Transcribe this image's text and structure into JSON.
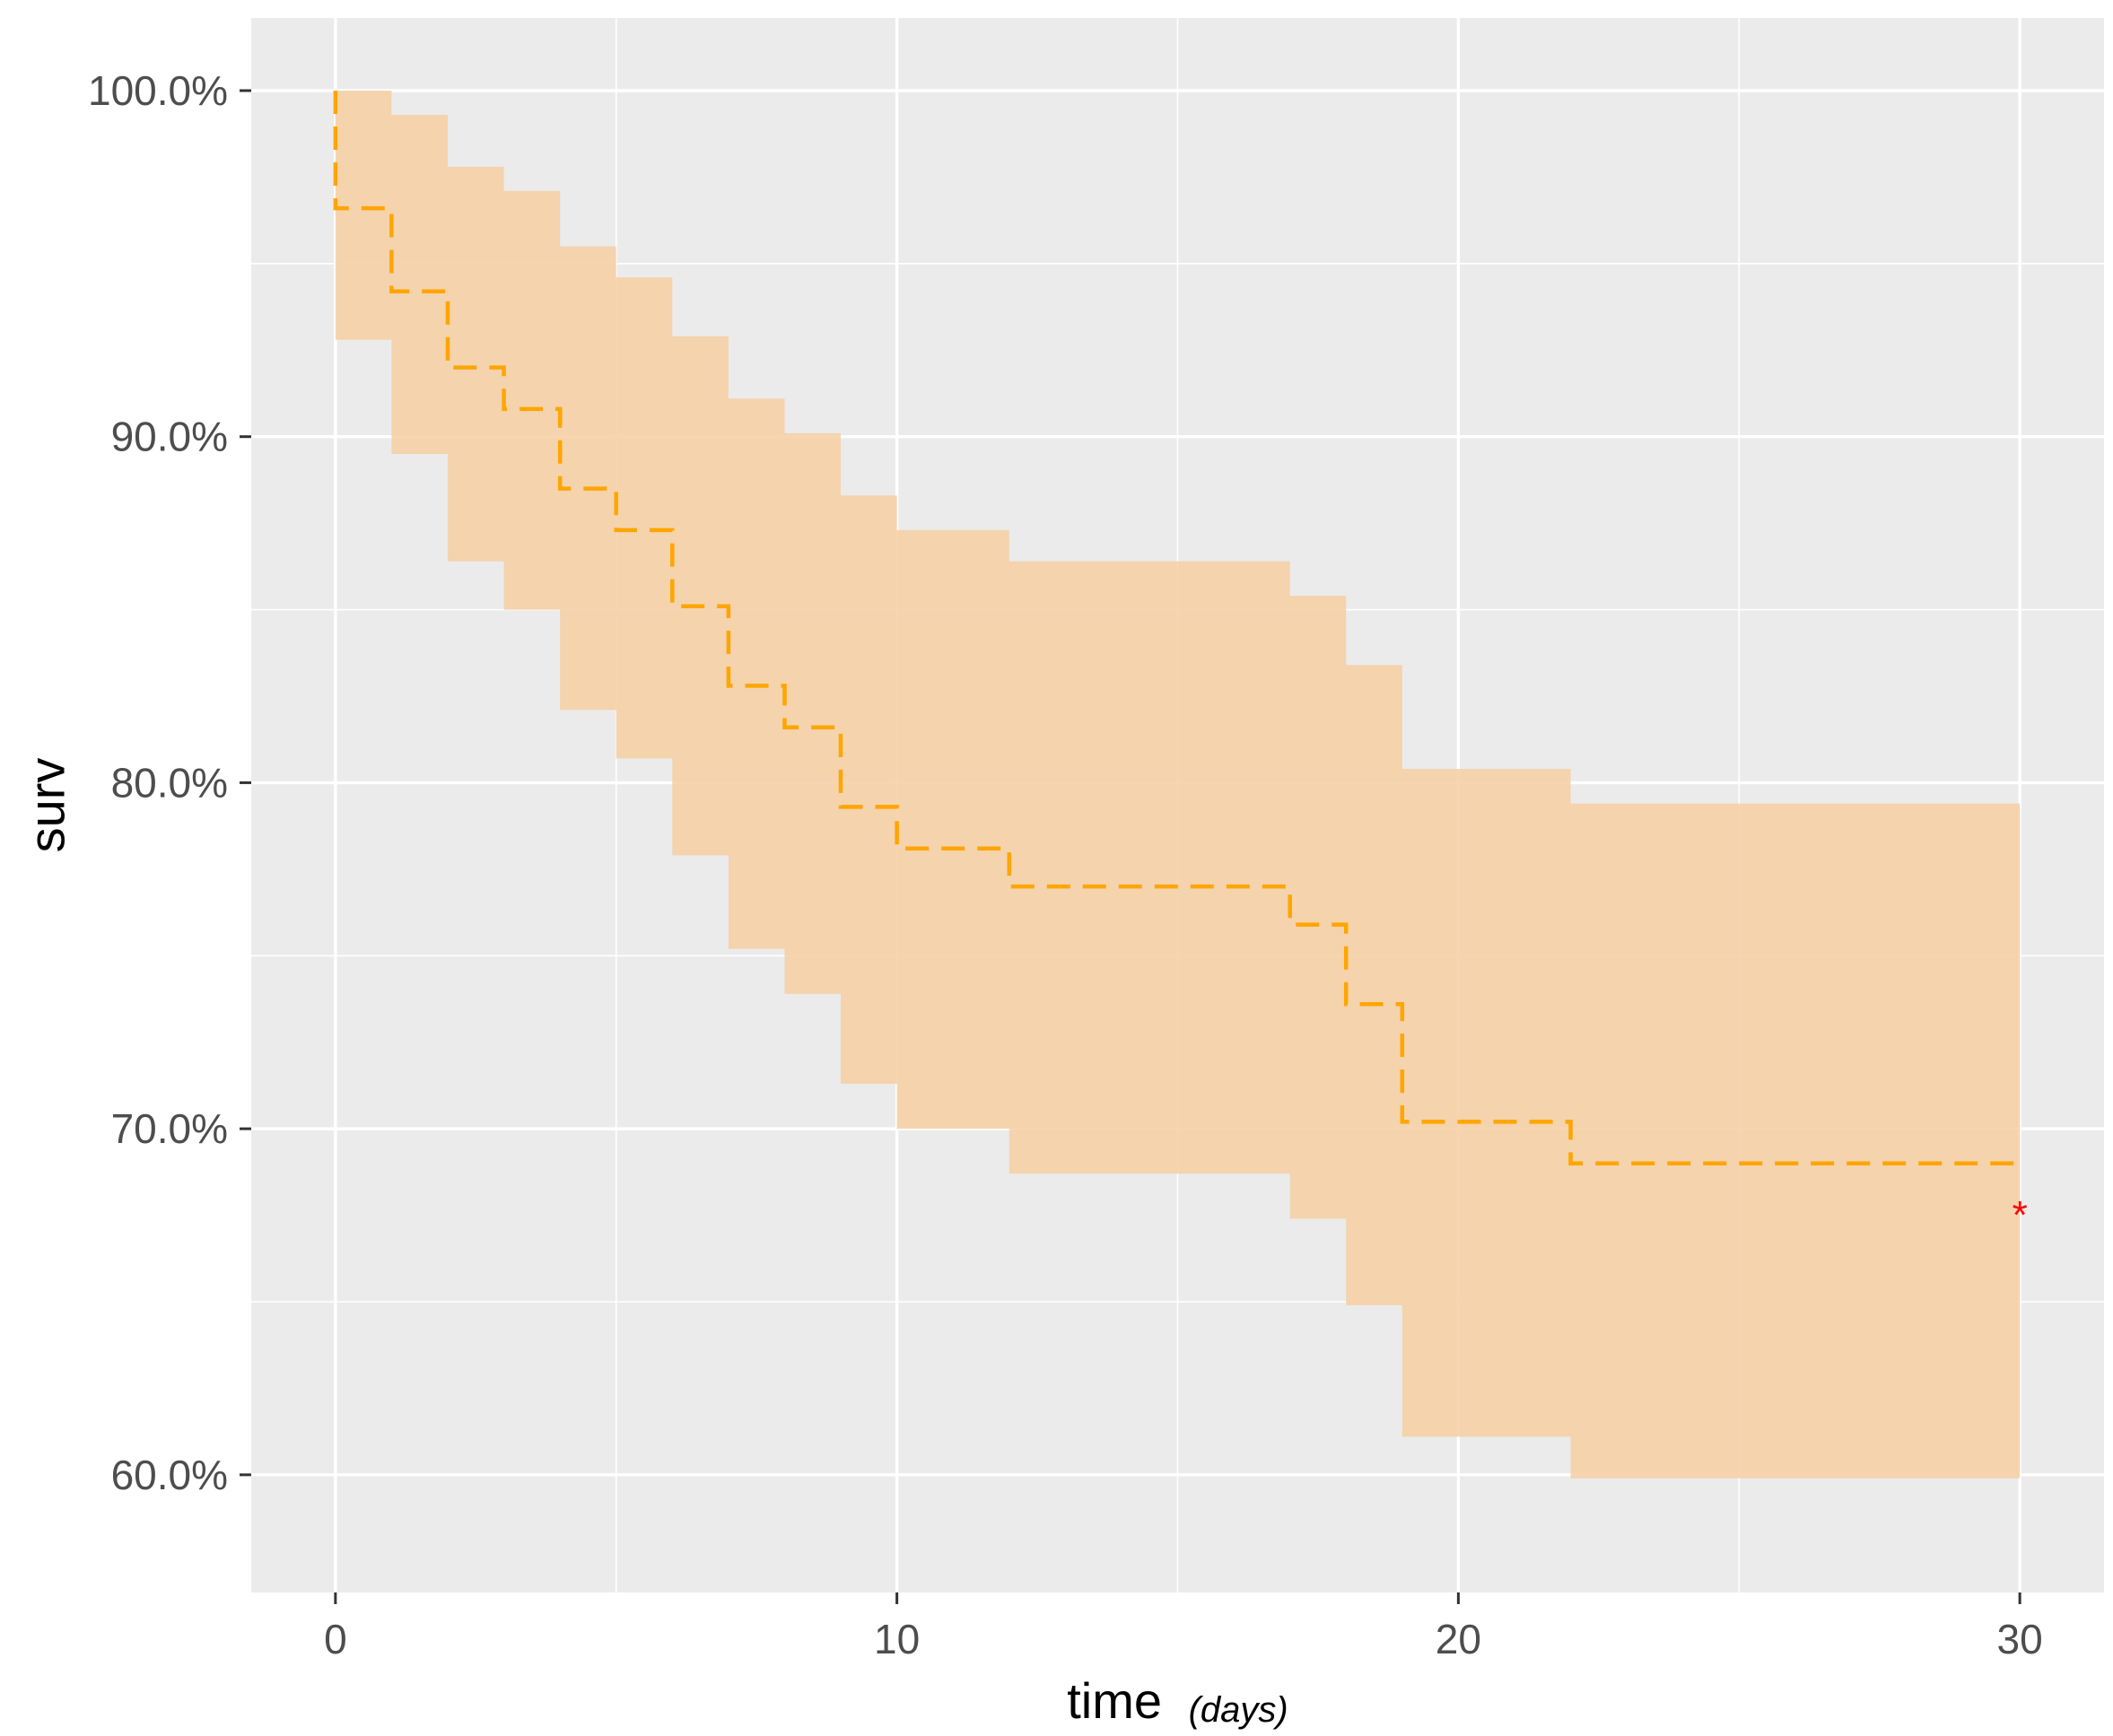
{
  "chart_data": {
    "type": "line",
    "step": true,
    "xlabel": "time",
    "xlabel_unit": "(days)",
    "ylabel": "surv",
    "xlim": [
      -1.5,
      31.5
    ],
    "ylim": [
      56.6,
      102.1
    ],
    "x_ticks": [
      0,
      10,
      20,
      30
    ],
    "x_tick_labels": [
      "0",
      "10",
      "20",
      "30"
    ],
    "y_ticks": [
      60,
      70,
      80,
      90,
      100
    ],
    "y_tick_labels": [
      "60.0%",
      "70.0%",
      "80.0%",
      "90.0%",
      "100.0%"
    ],
    "grid": true,
    "legend": "none",
    "series": [
      {
        "line_style": "dashed",
        "color": "#FFA500",
        "ci_color": "#F5D0A6",
        "steps": [
          {
            "x": 0,
            "surv": 96.6,
            "lower": 92.8,
            "upper": 100.0
          },
          {
            "x": 1,
            "surv": 94.2,
            "lower": 89.5,
            "upper": 99.3
          },
          {
            "x": 2,
            "surv": 92.0,
            "lower": 86.4,
            "upper": 97.8
          },
          {
            "x": 3,
            "surv": 90.8,
            "lower": 85.0,
            "upper": 97.1
          },
          {
            "x": 4,
            "surv": 88.5,
            "lower": 82.1,
            "upper": 95.5
          },
          {
            "x": 5,
            "surv": 87.3,
            "lower": 80.7,
            "upper": 94.6
          },
          {
            "x": 6,
            "surv": 85.1,
            "lower": 77.9,
            "upper": 92.9
          },
          {
            "x": 7,
            "surv": 82.8,
            "lower": 75.2,
            "upper": 91.1
          },
          {
            "x": 8,
            "surv": 81.6,
            "lower": 73.9,
            "upper": 90.1
          },
          {
            "x": 9,
            "surv": 79.3,
            "lower": 71.3,
            "upper": 88.3
          },
          {
            "x": 10,
            "surv": 78.1,
            "lower": 70.0,
            "upper": 87.3
          },
          {
            "x": 12,
            "surv": 77.0,
            "lower": 68.7,
            "upper": 86.4
          },
          {
            "x": 17,
            "surv": 75.9,
            "lower": 67.4,
            "upper": 85.4
          },
          {
            "x": 18,
            "surv": 73.6,
            "lower": 64.9,
            "upper": 83.4
          },
          {
            "x": 19,
            "surv": 70.2,
            "lower": 61.1,
            "upper": 80.4
          },
          {
            "x": 22,
            "surv": 69.0,
            "lower": 59.9,
            "upper": 79.4
          },
          {
            "x": 30,
            "surv": 69.0,
            "lower": 59.9,
            "upper": 79.4
          }
        ]
      }
    ],
    "annotations": [
      {
        "x": 30,
        "y": 67.7,
        "text": "*",
        "color": "#FF0000"
      }
    ]
  }
}
